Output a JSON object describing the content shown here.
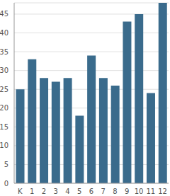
{
  "chart_data": {
    "type": "bar",
    "categories": [
      "K",
      "1",
      "2",
      "3",
      "4",
      "5",
      "6",
      "7",
      "8",
      "9",
      "10",
      "11",
      "12"
    ],
    "values": [
      25,
      33,
      28,
      27,
      28,
      18,
      34,
      28,
      26,
      43,
      45,
      24,
      48
    ],
    "color": "#3a6b8c",
    "ylim": [
      0,
      48
    ],
    "yticks": [
      0,
      5,
      10,
      15,
      20,
      25,
      30,
      35,
      40,
      45
    ],
    "grid": true
  }
}
